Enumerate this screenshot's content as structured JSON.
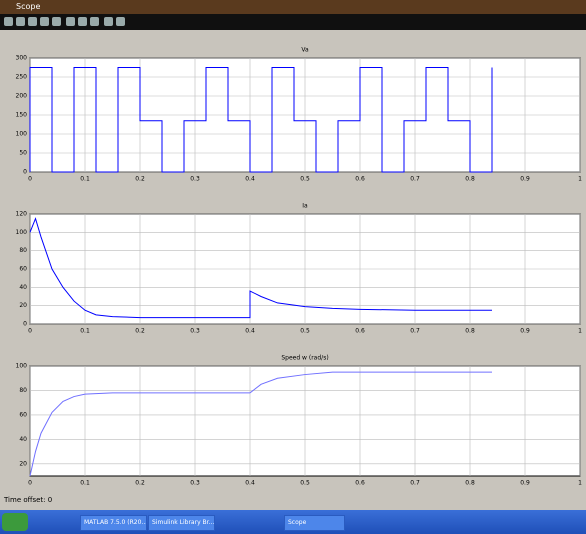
{
  "window": {
    "title": "Scope",
    "status": "Time offset:  0",
    "taskbar": [
      "MATLAB 7.5.0 (R20...",
      "Simulink Library Br...",
      "Scope"
    ]
  },
  "chart_data": [
    {
      "type": "line",
      "title": "Va",
      "xlim": [
        0,
        1
      ],
      "xticks": [
        0,
        0.1,
        0.2,
        0.3,
        0.4,
        0.5,
        0.6,
        0.7,
        0.8,
        0.9,
        1
      ],
      "ylim": [
        0,
        300
      ],
      "yticks": [
        0,
        50,
        100,
        150,
        200,
        250,
        300
      ],
      "grid": true,
      "x": [
        0,
        0,
        0.04,
        0.04,
        0.08,
        0.08,
        0.12,
        0.12,
        0.16,
        0.16,
        0.2,
        0.2,
        0.24,
        0.24,
        0.28,
        0.28,
        0.32,
        0.32,
        0.36,
        0.36,
        0.4,
        0.4,
        0.44,
        0.44,
        0.48,
        0.48,
        0.52,
        0.52,
        0.56,
        0.56,
        0.6,
        0.6,
        0.64,
        0.64,
        0.68,
        0.68,
        0.72,
        0.72,
        0.76,
        0.76,
        0.8,
        0.8,
        0.84,
        0.84
      ],
      "series": [
        {
          "color": "#0000ff",
          "values": [
            0,
            275,
            275,
            0,
            0,
            275,
            275,
            0,
            0,
            275,
            275,
            135,
            135,
            0,
            0,
            135,
            135,
            275,
            275,
            135,
            135,
            0,
            0,
            275,
            275,
            135,
            135,
            0,
            0,
            135,
            135,
            275,
            275,
            0,
            0,
            135,
            135,
            275,
            275,
            135,
            135,
            0,
            0,
            275
          ]
        }
      ]
    },
    {
      "type": "line",
      "title": "Ia",
      "xlim": [
        0,
        1
      ],
      "xticks": [
        0,
        0.1,
        0.2,
        0.3,
        0.4,
        0.5,
        0.6,
        0.7,
        0.8,
        0.9,
        1
      ],
      "ylim": [
        0,
        120
      ],
      "yticks": [
        0,
        20,
        40,
        60,
        80,
        100,
        120
      ],
      "grid": true,
      "x": [
        0,
        0.01,
        0.02,
        0.04,
        0.06,
        0.08,
        0.1,
        0.12,
        0.15,
        0.2,
        0.3,
        0.4,
        0.4,
        0.42,
        0.45,
        0.5,
        0.55,
        0.6,
        0.7,
        0.84
      ],
      "series": [
        {
          "color": "#0000ff",
          "values": [
            100,
            115,
            95,
            60,
            40,
            25,
            15,
            10,
            8,
            7,
            7,
            7,
            36,
            30,
            23,
            19,
            17,
            16,
            15,
            15
          ]
        }
      ]
    },
    {
      "type": "line",
      "title": "Speed w (rad/s)",
      "xlim": [
        0,
        1
      ],
      "xticks": [
        0,
        0.1,
        0.2,
        0.3,
        0.4,
        0.5,
        0.6,
        0.7,
        0.8,
        0.9,
        1
      ],
      "ylim": [
        10,
        100
      ],
      "yticks": [
        20,
        40,
        60,
        80,
        100
      ],
      "grid": true,
      "x": [
        0,
        0.01,
        0.02,
        0.04,
        0.06,
        0.08,
        0.1,
        0.15,
        0.4,
        0.42,
        0.45,
        0.5,
        0.55,
        0.6,
        0.84
      ],
      "series": [
        {
          "color": "#7070ff",
          "values": [
            10,
            30,
            45,
            62,
            71,
            75,
            77,
            78,
            78,
            85,
            90,
            93,
            95,
            95,
            95
          ]
        }
      ]
    }
  ]
}
